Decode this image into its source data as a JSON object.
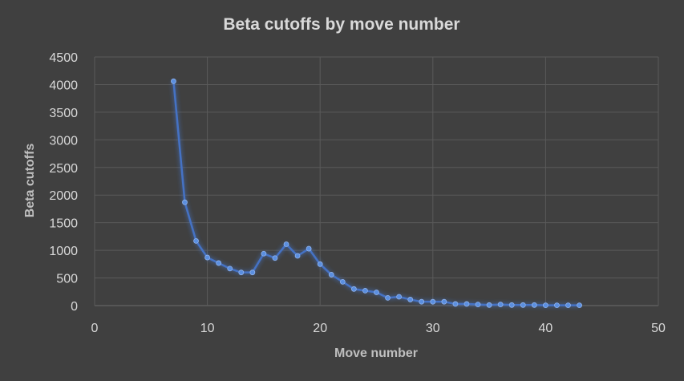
{
  "chart_data": {
    "type": "line",
    "title": "Beta cutoffs by move number",
    "xlabel": "Move number",
    "ylabel": "Beta cutoffs",
    "xlim": [
      0,
      50
    ],
    "ylim": [
      0,
      4500
    ],
    "xticks": [
      0,
      10,
      20,
      30,
      40,
      50
    ],
    "yticks": [
      0,
      500,
      1000,
      1500,
      2000,
      2500,
      3000,
      3500,
      4000,
      4500
    ],
    "grid": true,
    "legend": "none",
    "colors": {
      "background": "#404040",
      "line": "#4472c4",
      "grid": "#5a5a5a",
      "text": "#d9d9d9"
    },
    "series": [
      {
        "x": [
          7,
          8,
          9,
          10,
          11,
          12,
          13,
          14,
          15,
          16,
          17,
          18,
          19,
          20,
          21,
          22,
          23,
          24,
          25,
          26,
          27,
          28,
          29,
          30,
          31,
          32,
          33,
          34,
          35,
          36,
          37,
          38,
          39,
          40,
          41,
          42,
          43
        ],
        "y": [
          4060,
          1870,
          1170,
          870,
          770,
          670,
          600,
          600,
          940,
          860,
          1110,
          900,
          1030,
          750,
          560,
          430,
          300,
          270,
          240,
          140,
          160,
          110,
          70,
          70,
          70,
          30,
          30,
          20,
          10,
          20,
          10,
          10,
          10,
          5,
          5,
          5,
          5
        ]
      }
    ]
  }
}
